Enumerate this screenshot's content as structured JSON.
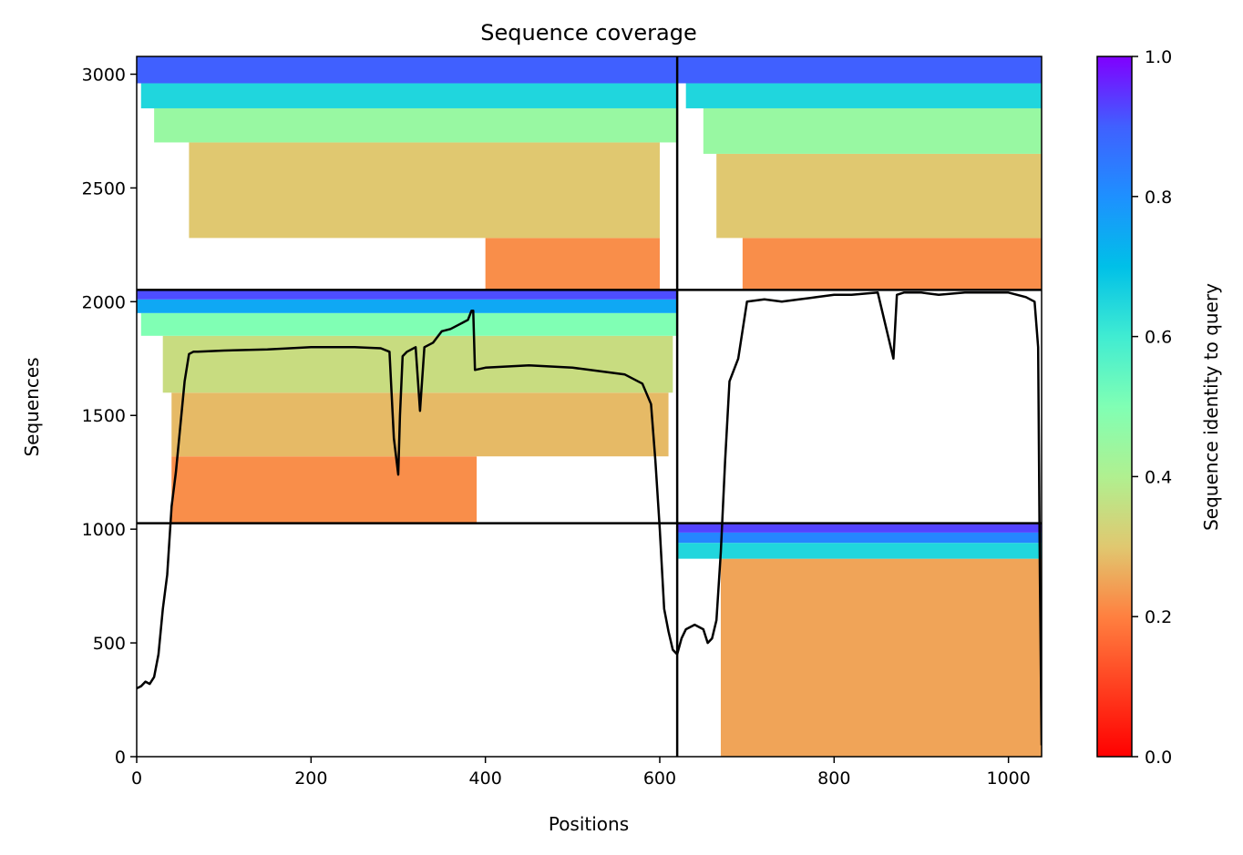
{
  "chart_data": {
    "type": "heatmap",
    "title": "Sequence coverage",
    "xlabel": "Positions",
    "ylabel": "Sequences",
    "xlim": [
      0,
      1038
    ],
    "ylim": [
      0,
      3078
    ],
    "x_ticks": [
      0,
      200,
      400,
      600,
      800,
      1000
    ],
    "y_ticks": [
      0,
      500,
      1000,
      1500,
      2000,
      2500,
      3000
    ],
    "colorbar": {
      "label": "Sequence identity to query",
      "range": [
        0.0,
        1.0
      ],
      "ticks": [
        "0.0",
        "0.2",
        "0.4",
        "0.6",
        "0.8",
        "1.0"
      ],
      "colormap": "rainbow"
    },
    "chain_boundaries": {
      "x": [
        620
      ],
      "y": [
        1026,
        2052
      ]
    },
    "blocks": [
      {
        "x": [
          0,
          620
        ],
        "y": [
          2052,
          3078
        ],
        "coverage_start": [
          60,
          5
        ],
        "bands": [
          {
            "y": [
              2052,
              2280
            ],
            "identity": 0.22,
            "start": 400,
            "end": 600
          },
          {
            "y": [
              2280,
              2700
            ],
            "identity": 0.3,
            "start": 60,
            "end": 600
          },
          {
            "y": [
              2700,
              2850
            ],
            "identity": 0.45,
            "start": 20,
            "end": 620
          },
          {
            "y": [
              2850,
              2960
            ],
            "identity": 0.65,
            "start": 5,
            "end": 620
          },
          {
            "y": [
              2960,
              3078
            ],
            "identity": 0.9,
            "start": 0,
            "end": 620
          }
        ]
      },
      {
        "x": [
          620,
          1038
        ],
        "y": [
          2052,
          3078
        ],
        "bands": [
          {
            "y": [
              2052,
              2280
            ],
            "identity": 0.22,
            "start": 695,
            "end": 1038
          },
          {
            "y": [
              2280,
              2650
            ],
            "identity": 0.3,
            "start": 665,
            "end": 1038
          },
          {
            "y": [
              2650,
              2850
            ],
            "identity": 0.45,
            "start": 650,
            "end": 1038
          },
          {
            "y": [
              2850,
              2960
            ],
            "identity": 0.65,
            "start": 630,
            "end": 1038
          },
          {
            "y": [
              2960,
              3078
            ],
            "identity": 0.9,
            "start": 620,
            "end": 1038
          }
        ]
      },
      {
        "x": [
          0,
          620
        ],
        "y": [
          1026,
          2052
        ],
        "bands": [
          {
            "y": [
              1026,
              1320
            ],
            "identity": 0.22,
            "start": 40,
            "end": 390
          },
          {
            "y": [
              1320,
              1600
            ],
            "identity": 0.28,
            "start": 40,
            "end": 610
          },
          {
            "y": [
              1600,
              1850
            ],
            "identity": 0.35,
            "start": 30,
            "end": 615
          },
          {
            "y": [
              1850,
              1950
            ],
            "identity": 0.5,
            "start": 5,
            "end": 620
          },
          {
            "y": [
              1950,
              2010
            ],
            "identity": 0.75,
            "start": 0,
            "end": 620
          },
          {
            "y": [
              2010,
              2052
            ],
            "identity": 0.92,
            "start": 0,
            "end": 620
          }
        ]
      },
      {
        "x": [
          620,
          1038
        ],
        "y": [
          0,
          1026
        ],
        "bands": [
          {
            "y": [
              0,
              870
            ],
            "identity": 0.25,
            "start": 670,
            "end": 1038
          },
          {
            "y": [
              870,
              940
            ],
            "identity": 0.65,
            "start": 620,
            "end": 1038
          },
          {
            "y": [
              940,
              985
            ],
            "identity": 0.82,
            "start": 620,
            "end": 1038
          },
          {
            "y": [
              985,
              1026
            ],
            "identity": 0.93,
            "start": 620,
            "end": 1038
          }
        ]
      }
    ],
    "coverage_line": {
      "x": [
        0,
        5,
        10,
        15,
        20,
        25,
        30,
        35,
        40,
        45,
        50,
        55,
        60,
        65,
        70,
        100,
        150,
        200,
        250,
        280,
        290,
        295,
        300,
        302,
        305,
        310,
        320,
        325,
        330,
        340,
        350,
        360,
        370,
        380,
        384,
        386,
        388,
        400,
        450,
        500,
        520,
        540,
        560,
        580,
        590,
        595,
        600,
        605,
        610,
        615,
        620,
        625,
        630,
        640,
        650,
        655,
        660,
        665,
        670,
        675,
        680,
        690,
        700,
        720,
        740,
        760,
        780,
        800,
        820,
        850,
        868,
        872,
        880,
        900,
        920,
        950,
        980,
        1000,
        1020,
        1030,
        1034,
        1036,
        1038
      ],
      "y": [
        300,
        310,
        330,
        320,
        350,
        450,
        650,
        800,
        1100,
        1250,
        1450,
        1650,
        1770,
        1780,
        1780,
        1785,
        1790,
        1800,
        1800,
        1795,
        1780,
        1400,
        1240,
        1500,
        1760,
        1780,
        1800,
        1520,
        1800,
        1820,
        1870,
        1880,
        1900,
        1920,
        1960,
        1960,
        1700,
        1710,
        1720,
        1710,
        1700,
        1690,
        1680,
        1640,
        1550,
        1300,
        1000,
        650,
        550,
        470,
        450,
        520,
        560,
        580,
        560,
        500,
        520,
        600,
        900,
        1300,
        1650,
        1750,
        2000,
        2010,
        2000,
        2010,
        2020,
        2030,
        2030,
        2040,
        1750,
        2030,
        2040,
        2040,
        2030,
        2040,
        2040,
        2040,
        2020,
        2000,
        1800,
        800,
        50
      ]
    }
  }
}
